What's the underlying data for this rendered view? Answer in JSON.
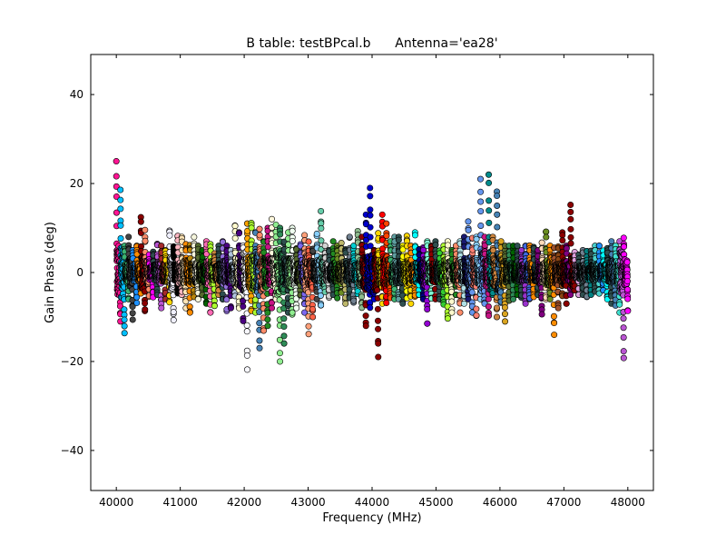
{
  "chart_data": {
    "type": "scatter",
    "title": "B table: testBPcal.b      Antenna='ea28'",
    "xlabel": "Frequency (MHz)",
    "ylabel": "Gain Phase (deg)",
    "xlim": [
      39600,
      48400
    ],
    "ylim": [
      -49,
      49
    ],
    "xticks": [
      40000,
      41000,
      42000,
      43000,
      44000,
      45000,
      46000,
      47000,
      48000
    ],
    "yticks": [
      -40,
      -20,
      0,
      20,
      40
    ],
    "grid": false,
    "legend": "none",
    "marker": "circle",
    "channels_per_spw": 64,
    "spw_width_mhz": 128,
    "spectral_windows": [
      {
        "start": 40000,
        "color": "#ff1493",
        "ymin": -11,
        "ymax": 25
      },
      {
        "start": 40064,
        "color": "#00bfff",
        "ymin": -14,
        "ymax": 19
      },
      {
        "start": 40128,
        "color": "#3cb371",
        "ymin": -6,
        "ymax": 6
      },
      {
        "start": 40192,
        "color": "#444444",
        "ymin": -11,
        "ymax": 8
      },
      {
        "start": 40256,
        "color": "#1e90ff",
        "ymin": -7,
        "ymax": 5
      },
      {
        "start": 40320,
        "color": "#ff8c00",
        "ymin": -5,
        "ymax": 6
      },
      {
        "start": 40384,
        "color": "#8b0000",
        "ymin": -9,
        "ymax": 13
      },
      {
        "start": 40448,
        "color": "#ff8c69",
        "ymin": -6,
        "ymax": 10
      },
      {
        "start": 40512,
        "color": "#ff00ff",
        "ymin": -6,
        "ymax": 4
      },
      {
        "start": 40576,
        "color": "#2f4f4f",
        "ymin": -5,
        "ymax": 5
      },
      {
        "start": 40640,
        "color": "#ba55d3",
        "ymin": -8,
        "ymax": 7
      },
      {
        "start": 40704,
        "color": "#a52a2a",
        "ymin": -6,
        "ymax": 6
      },
      {
        "start": 40768,
        "color": "#ffd700",
        "ymin": -7,
        "ymax": 5
      },
      {
        "start": 40832,
        "color": "#f0f0ff",
        "ymin": -11,
        "ymax": 10
      },
      {
        "start": 40896,
        "color": "#000000",
        "ymin": -5,
        "ymax": 6
      },
      {
        "start": 40960,
        "color": "#ffb6c1",
        "ymin": -5,
        "ymax": 9
      },
      {
        "start": 41024,
        "color": "#ffe4b5",
        "ymin": -8,
        "ymax": 8
      },
      {
        "start": 41088,
        "color": "#ff8c00",
        "ymin": -9,
        "ymax": 7
      },
      {
        "start": 41152,
        "color": "#b8860b",
        "ymin": -6,
        "ymax": 7
      },
      {
        "start": 41216,
        "color": "#f5f5dc",
        "ymin": -6,
        "ymax": 8
      },
      {
        "start": 41280,
        "color": "#556b2f",
        "ymin": -5,
        "ymax": 6
      },
      {
        "start": 41344,
        "color": "#006400",
        "ymin": -7,
        "ymax": 5
      },
      {
        "start": 41408,
        "color": "#ff69b4",
        "ymin": -9,
        "ymax": 7
      },
      {
        "start": 41472,
        "color": "#adff2f",
        "ymin": -8,
        "ymax": 7
      },
      {
        "start": 41536,
        "color": "#cd853f",
        "ymin": -5,
        "ymax": 5
      },
      {
        "start": 41600,
        "color": "#2f4f4f",
        "ymin": -6,
        "ymax": 6
      },
      {
        "start": 41664,
        "color": "#9370db",
        "ymin": -9,
        "ymax": 7
      },
      {
        "start": 41728,
        "color": "#4b0082",
        "ymin": -8,
        "ymax": 6
      },
      {
        "start": 41792,
        "color": "#b0c4de",
        "ymin": -6,
        "ymax": 5
      },
      {
        "start": 41856,
        "color": "#fffacd",
        "ymin": -8,
        "ymax": 11
      },
      {
        "start": 41920,
        "color": "#4b0082",
        "ymin": -11,
        "ymax": 9
      },
      {
        "start": 41984,
        "color": "#f8f8ff",
        "ymin": -22,
        "ymax": 6
      },
      {
        "start": 42048,
        "color": "#ffa500",
        "ymin": -9,
        "ymax": 11
      },
      {
        "start": 42112,
        "color": "#adff2f",
        "ymin": -9,
        "ymax": 12
      },
      {
        "start": 42176,
        "color": "#4682b4",
        "ymin": -17,
        "ymax": 9
      },
      {
        "start": 42240,
        "color": "#ff8c69",
        "ymin": -14,
        "ymax": 10
      },
      {
        "start": 42304,
        "color": "#228b22",
        "ymin": -12,
        "ymax": 7
      },
      {
        "start": 42368,
        "color": "#c71585",
        "ymin": -8,
        "ymax": 10
      },
      {
        "start": 42432,
        "color": "#fff8dc",
        "ymin": -6,
        "ymax": 12
      },
      {
        "start": 42496,
        "color": "#90ee90",
        "ymin": -20,
        "ymax": 11
      },
      {
        "start": 42560,
        "color": "#2e8b57",
        "ymin": -16,
        "ymax": 10
      },
      {
        "start": 42624,
        "color": "#2f4f4f",
        "ymin": -9,
        "ymax": 7
      },
      {
        "start": 42688,
        "color": "#90ee90",
        "ymin": -10,
        "ymax": 9
      },
      {
        "start": 42752,
        "color": "#f0fff0",
        "ymin": -8,
        "ymax": 10
      },
      {
        "start": 42816,
        "color": "#556b2f",
        "ymin": -6,
        "ymax": 6
      },
      {
        "start": 42880,
        "color": "#7b68ee",
        "ymin": -9,
        "ymax": 7
      },
      {
        "start": 42944,
        "color": "#ffa07a",
        "ymin": -14,
        "ymax": 9
      },
      {
        "start": 43008,
        "color": "#ff6347",
        "ymin": -10,
        "ymax": 7
      },
      {
        "start": 43072,
        "color": "#444444",
        "ymin": -6,
        "ymax": 6
      },
      {
        "start": 43136,
        "color": "#87cefa",
        "ymin": -8,
        "ymax": 9
      },
      {
        "start": 43200,
        "color": "#66cdaa",
        "ymin": -5,
        "ymax": 14
      },
      {
        "start": 43264,
        "color": "#d3d3d3",
        "ymin": -6,
        "ymax": 6
      },
      {
        "start": 43328,
        "color": "#2f4f4f",
        "ymin": -5,
        "ymax": 5
      },
      {
        "start": 43392,
        "color": "#228b22",
        "ymin": -6,
        "ymax": 7
      },
      {
        "start": 43456,
        "color": "#6b8e23",
        "ymin": -5,
        "ymax": 6
      },
      {
        "start": 43520,
        "color": "#bdb76b",
        "ymin": -7,
        "ymax": 7
      },
      {
        "start": 43584,
        "color": "#2f4f4f",
        "ymin": -6,
        "ymax": 6
      },
      {
        "start": 43648,
        "color": "#708090",
        "ymin": -7,
        "ymax": 8
      },
      {
        "start": 43712,
        "color": "#00ced1",
        "ymin": -5,
        "ymax": 6
      },
      {
        "start": 43776,
        "color": "#8fbc8f",
        "ymin": -8,
        "ymax": 10
      },
      {
        "start": 43840,
        "color": "#8b0000",
        "ymin": -12,
        "ymax": 8
      },
      {
        "start": 43904,
        "color": "#0000cd",
        "ymin": -8,
        "ymax": 13
      },
      {
        "start": 43968,
        "color": "#0000cd",
        "ymin": -6,
        "ymax": 19
      },
      {
        "start": 44032,
        "color": "#8b0000",
        "ymin": -19,
        "ymax": 5
      },
      {
        "start": 44096,
        "color": "#ffd700",
        "ymin": -7,
        "ymax": 9
      },
      {
        "start": 44160,
        "color": "#ff0000",
        "ymin": -7,
        "ymax": 13
      },
      {
        "start": 44224,
        "color": "#ff4500",
        "ymin": -6,
        "ymax": 11
      },
      {
        "start": 44288,
        "color": "#3cb371",
        "ymin": -6,
        "ymax": 7
      },
      {
        "start": 44352,
        "color": "#5f9ea0",
        "ymin": -6,
        "ymax": 8
      },
      {
        "start": 44416,
        "color": "#2f4f4f",
        "ymin": -7,
        "ymax": 8
      },
      {
        "start": 44480,
        "color": "#ffff00",
        "ymin": -6,
        "ymax": 6
      },
      {
        "start": 44544,
        "color": "#ffd700",
        "ymin": -7,
        "ymax": 9
      },
      {
        "start": 44608,
        "color": "#ff8c00",
        "ymin": -6,
        "ymax": 6
      },
      {
        "start": 44672,
        "color": "#00ffff",
        "ymin": -5,
        "ymax": 9
      },
      {
        "start": 44736,
        "color": "#000080",
        "ymin": -6,
        "ymax": 6
      },
      {
        "start": 44800,
        "color": "#9400d3",
        "ymin": -12,
        "ymax": 6
      },
      {
        "start": 44864,
        "color": "#7fffd4",
        "ymin": -6,
        "ymax": 7
      },
      {
        "start": 44928,
        "color": "#8b0000",
        "ymin": -6,
        "ymax": 6
      },
      {
        "start": 44992,
        "color": "#2f4f4f",
        "ymin": -6,
        "ymax": 7
      },
      {
        "start": 45056,
        "color": "#32cd32",
        "ymin": -8,
        "ymax": 5
      },
      {
        "start": 45120,
        "color": "#adff2f",
        "ymin": -11,
        "ymax": 6
      },
      {
        "start": 45184,
        "color": "#fffacd",
        "ymin": -9,
        "ymax": 7
      },
      {
        "start": 45248,
        "color": "#228b22",
        "ymin": -5,
        "ymax": 5
      },
      {
        "start": 45312,
        "color": "#ff8c69",
        "ymin": -9,
        "ymax": 6
      },
      {
        "start": 45376,
        "color": "#b0e0e6",
        "ymin": -7,
        "ymax": 7
      },
      {
        "start": 45440,
        "color": "#191970",
        "ymin": -6,
        "ymax": 8
      },
      {
        "start": 45504,
        "color": "#6495ed",
        "ymin": -9,
        "ymax": 12
      },
      {
        "start": 45568,
        "color": "#fa8072",
        "ymin": -10,
        "ymax": 8
      },
      {
        "start": 45632,
        "color": "#87cefa",
        "ymin": -6,
        "ymax": 8
      },
      {
        "start": 45696,
        "color": "#6495ed",
        "ymin": -7,
        "ymax": 21
      },
      {
        "start": 45760,
        "color": "#c71585",
        "ymin": -10,
        "ymax": 8
      },
      {
        "start": 45824,
        "color": "#008b8b",
        "ymin": -5,
        "ymax": 22
      },
      {
        "start": 45888,
        "color": "#cd853f",
        "ymin": -10,
        "ymax": 8
      },
      {
        "start": 45952,
        "color": "#4682b4",
        "ymin": -7,
        "ymax": 19
      },
      {
        "start": 46016,
        "color": "#daa520",
        "ymin": -11,
        "ymax": 7
      },
      {
        "start": 46080,
        "color": "#556b2f",
        "ymin": -7,
        "ymax": 6
      },
      {
        "start": 46144,
        "color": "#2e8b57",
        "ymin": -6,
        "ymax": 6
      },
      {
        "start": 46208,
        "color": "#006400",
        "ymin": -5,
        "ymax": 6
      },
      {
        "start": 46272,
        "color": "#2f4f4f",
        "ymin": -6,
        "ymax": 6
      },
      {
        "start": 46336,
        "color": "#9932cc",
        "ymin": -7,
        "ymax": 5
      },
      {
        "start": 46400,
        "color": "#4169e1",
        "ymin": -6,
        "ymax": 6
      },
      {
        "start": 46464,
        "color": "#ff8c00",
        "ymin": -6,
        "ymax": 7
      },
      {
        "start": 46528,
        "color": "#2f4f4f",
        "ymin": -5,
        "ymax": 6
      },
      {
        "start": 46592,
        "color": "#800080",
        "ymin": -10,
        "ymax": 5
      },
      {
        "start": 46656,
        "color": "#ffdab9",
        "ymin": -6,
        "ymax": 7
      },
      {
        "start": 46720,
        "color": "#6b8e23",
        "ymin": -6,
        "ymax": 10
      },
      {
        "start": 46784,
        "color": "#ff8c00",
        "ymin": -14,
        "ymax": 6
      },
      {
        "start": 46848,
        "color": "#a0522d",
        "ymin": -8,
        "ymax": 6
      },
      {
        "start": 46912,
        "color": "#8b4513",
        "ymin": -6,
        "ymax": 6
      },
      {
        "start": 46976,
        "color": "#8b0000",
        "ymin": -7,
        "ymax": 9
      },
      {
        "start": 47040,
        "color": "#800080",
        "ymin": -5,
        "ymax": 6
      },
      {
        "start": 47104,
        "color": "#8b0000",
        "ymin": -4,
        "ymax": 16
      },
      {
        "start": 47168,
        "color": "#dda0dd",
        "ymin": -5,
        "ymax": 5
      },
      {
        "start": 47232,
        "color": "#2f4f4f",
        "ymin": -5,
        "ymax": 4
      },
      {
        "start": 47296,
        "color": "#708090",
        "ymin": -6,
        "ymax": 5
      },
      {
        "start": 47360,
        "color": "#008080",
        "ymin": -5,
        "ymax": 5
      },
      {
        "start": 47424,
        "color": "#2f4f4f",
        "ymin": -5,
        "ymax": 5
      },
      {
        "start": 47488,
        "color": "#48d1cc",
        "ymin": -5,
        "ymax": 6
      },
      {
        "start": 47552,
        "color": "#1e90ff",
        "ymin": -4,
        "ymax": 6
      },
      {
        "start": 47616,
        "color": "#00ffff",
        "ymin": -6,
        "ymax": 5
      },
      {
        "start": 47680,
        "color": "#2f4f4f",
        "ymin": -7,
        "ymax": 6
      },
      {
        "start": 47744,
        "color": "#4682b4",
        "ymin": -8,
        "ymax": 7
      },
      {
        "start": 47808,
        "color": "#40e0d0",
        "ymin": -9,
        "ymax": 6
      },
      {
        "start": 47872,
        "color": "#ba55d3",
        "ymin": -20,
        "ymax": 7
      },
      {
        "start": 47936,
        "color": "#ff00ff",
        "ymin": -9,
        "ymax": 8
      }
    ]
  }
}
